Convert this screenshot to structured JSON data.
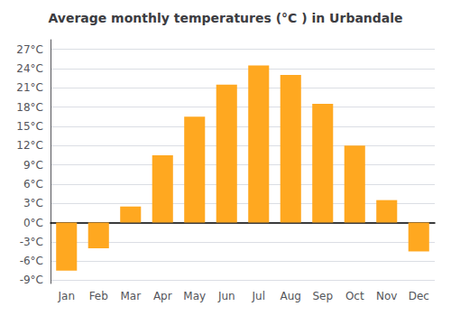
{
  "chart_data": {
    "type": "bar",
    "title": "Average monthly temperatures (°C ) in Urbandale",
    "categories": [
      "Jan",
      "Feb",
      "Mar",
      "Apr",
      "May",
      "Jun",
      "Jul",
      "Aug",
      "Sep",
      "Oct",
      "Nov",
      "Dec"
    ],
    "values": [
      -7.5,
      -4.0,
      2.5,
      10.5,
      16.5,
      21.5,
      24.5,
      23.0,
      18.5,
      12.0,
      3.5,
      -4.5
    ],
    "color": "#FFA820",
    "ylim": [
      -9.5,
      28.5
    ],
    "yticks": [
      {
        "value": -9,
        "label": "-9°C"
      },
      {
        "value": -6,
        "label": "-6°C"
      },
      {
        "value": -3,
        "label": "-3°C"
      },
      {
        "value": 0,
        "label": "0°C"
      },
      {
        "value": 3,
        "label": "3°C"
      },
      {
        "value": 6,
        "label": "6°C"
      },
      {
        "value": 9,
        "label": "9°C"
      },
      {
        "value": 12,
        "label": "12°C"
      },
      {
        "value": 15,
        "label": "15°C"
      },
      {
        "value": 18,
        "label": "18°C"
      },
      {
        "value": 21,
        "label": "21°C"
      },
      {
        "value": 24,
        "label": "24°C"
      },
      {
        "value": 27,
        "label": "27°C"
      }
    ],
    "grid": true
  }
}
